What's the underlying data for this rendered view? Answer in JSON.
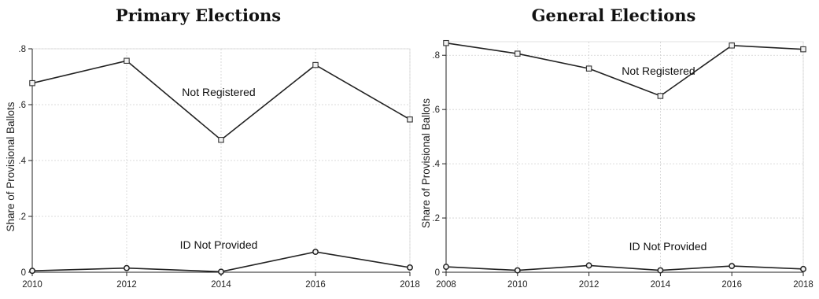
{
  "chart_data": [
    {
      "type": "line",
      "title": "Primary Elections",
      "ylabel": "Share of Provisional Ballots",
      "xlabel": "",
      "x": [
        2010,
        2012,
        2014,
        2016,
        2018
      ],
      "xlim": [
        2010,
        2018
      ],
      "ylim": [
        0,
        0.8
      ],
      "yticks": [
        0,
        0.2,
        0.4,
        0.6,
        0.8
      ],
      "ytick_labels": [
        "0",
        ".2",
        ".4",
        ".6",
        ".8"
      ],
      "grid": true,
      "series": [
        {
          "name": "Not Registered",
          "marker": "square",
          "values": [
            0.677,
            0.757,
            0.474,
            0.742,
            0.547
          ]
        },
        {
          "name": "ID Not Provided",
          "marker": "circle",
          "values": [
            0.005,
            0.015,
            0.002,
            0.073,
            0.017
          ]
        }
      ]
    },
    {
      "type": "line",
      "title": "General Elections",
      "ylabel": "Share of Provisional Ballots",
      "xlabel": "",
      "x": [
        2008,
        2010,
        2012,
        2014,
        2016,
        2018
      ],
      "xlim": [
        2008,
        2018
      ],
      "ylim": [
        0,
        0.85
      ],
      "yticks": [
        0,
        0.2,
        0.4,
        0.6,
        0.8
      ],
      "ytick_labels": [
        "0",
        ".2",
        ".4",
        ".6",
        ".8"
      ],
      "grid": true,
      "series": [
        {
          "name": "Not Registered",
          "marker": "square",
          "values": [
            0.845,
            0.806,
            0.751,
            0.65,
            0.836,
            0.822
          ]
        },
        {
          "name": "ID Not Provided",
          "marker": "circle",
          "values": [
            0.02,
            0.007,
            0.025,
            0.007,
            0.023,
            0.012
          ]
        }
      ]
    }
  ]
}
